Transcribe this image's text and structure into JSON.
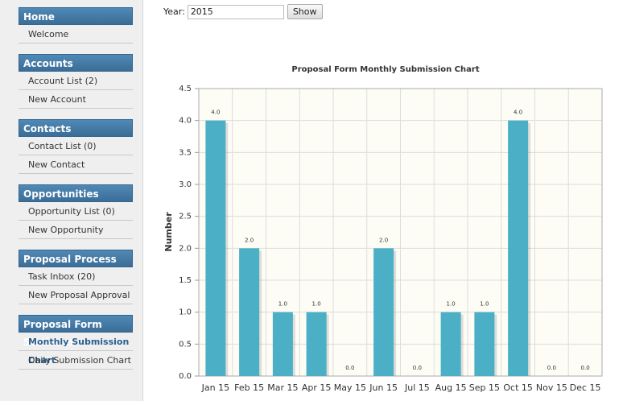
{
  "sidebar": {
    "sections": [
      {
        "title": "Home",
        "items": [
          {
            "text": "Welcome"
          }
        ]
      },
      {
        "title": "Accounts",
        "items": [
          {
            "text": "Account List (2)"
          },
          {
            "text": "New Account"
          }
        ]
      },
      {
        "title": "Contacts",
        "items": [
          {
            "text": "Contact List (0)"
          },
          {
            "text": "New Contact"
          }
        ]
      },
      {
        "title": "Opportunities",
        "items": [
          {
            "text": "Opportunity List (0)"
          },
          {
            "text": "New Opportunity"
          }
        ]
      },
      {
        "title": "Proposal Process",
        "items": [
          {
            "text": "Task Inbox (20)"
          },
          {
            "text": "New Proposal Approval"
          }
        ]
      },
      {
        "title": "Proposal Form Statistics",
        "items": [
          {
            "text": "Monthly Submission Chart",
            "active": true
          },
          {
            "text": "Daily Submission Chart"
          }
        ]
      }
    ]
  },
  "form": {
    "label": "Year:",
    "input": "2015",
    "button": "Show"
  },
  "chart_data": {
    "type": "bar",
    "title": "Proposal Form Monthly Submission Chart",
    "y_label": "Number",
    "categories": [
      "Jan 15",
      "Feb 15",
      "Mar 15",
      "Apr 15",
      "May 15",
      "Jun 15",
      "Jul 15",
      "Aug 15",
      "Sep 15",
      "Oct 15",
      "Nov 15",
      "Dec 15"
    ],
    "values": [
      4,
      2,
      1,
      1,
      0,
      2,
      0,
      1,
      1,
      4,
      0,
      0
    ],
    "value_labels": [
      "4.0",
      "2.0",
      "1.0",
      "1.0",
      "0.0",
      "2.0",
      "0.0",
      "1.0",
      "1.0",
      "4.0",
      "0.0",
      "0.0"
    ],
    "color": "#4bafc6",
    "ylim": [
      0,
      4.5
    ],
    "yticks": [
      {
        "value": 0,
        "label": "0.0"
      },
      {
        "value": 0.5,
        "label": "0.5"
      },
      {
        "value": 1,
        "label": "1.0"
      },
      {
        "value": 1.5,
        "label": "1.5"
      },
      {
        "value": 2,
        "label": "2.0"
      },
      {
        "value": 2.5,
        "label": "2.5"
      },
      {
        "value": 3,
        "label": "3.0"
      },
      {
        "value": 3.5,
        "label": "3.5"
      },
      {
        "value": 4,
        "label": "4.0"
      },
      {
        "value": 4.5,
        "label": "4.5"
      }
    ],
    "grid": true
  }
}
